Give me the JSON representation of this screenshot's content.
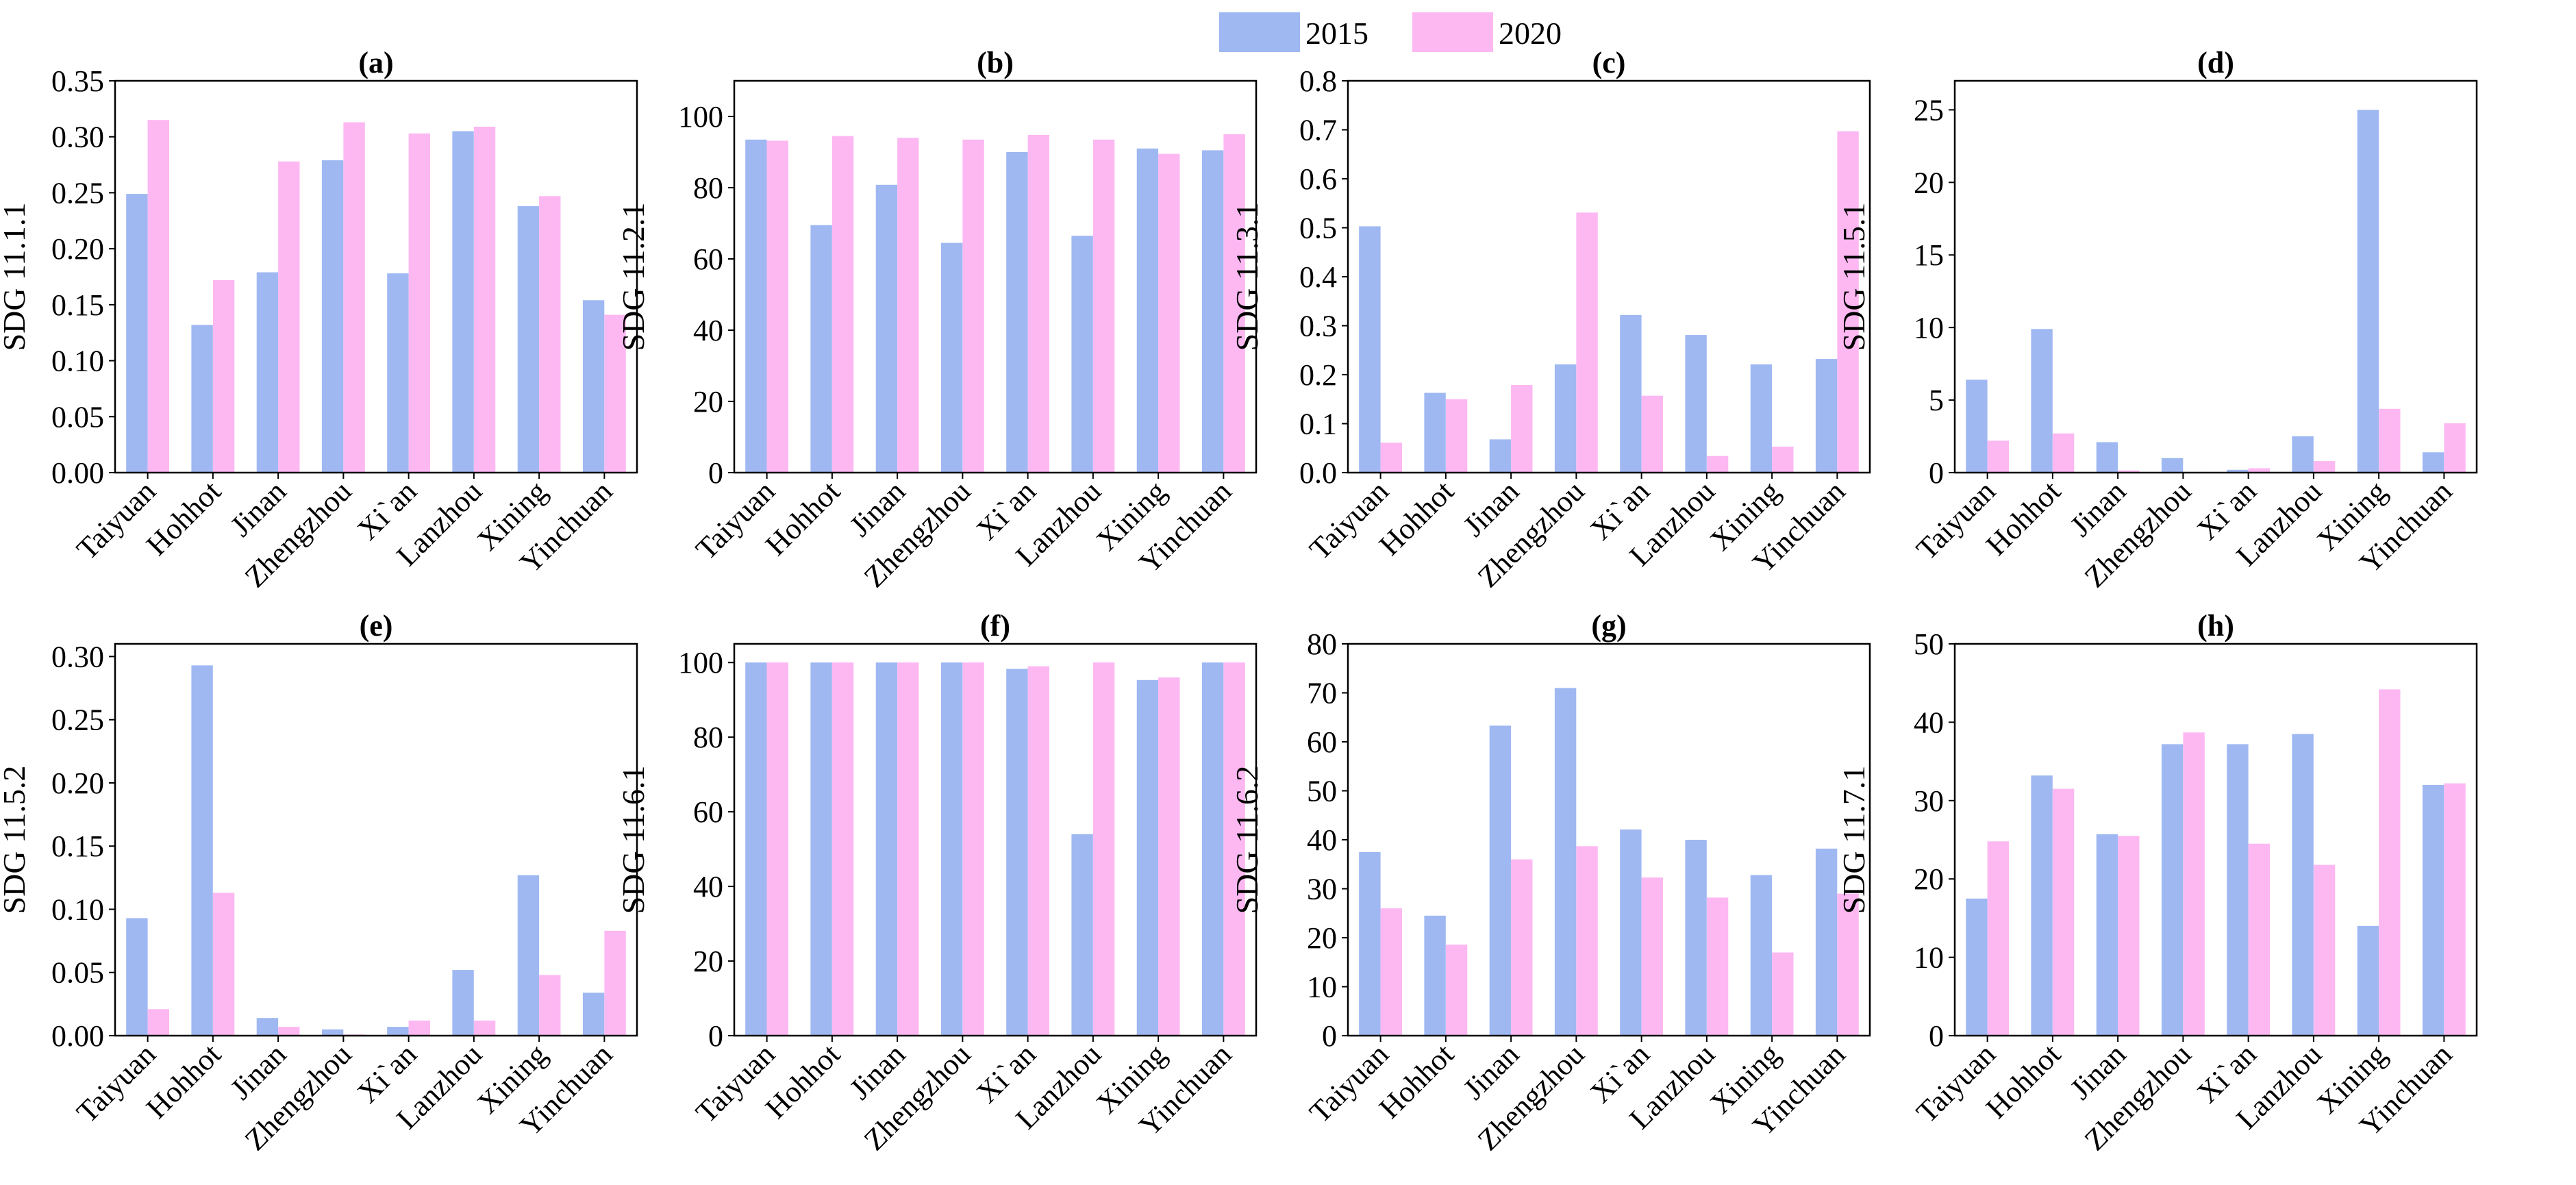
{
  "legend": [
    {
      "label": "2015",
      "color": "#9fb8f2"
    },
    {
      "label": "2020",
      "color": "#fdb8f2"
    }
  ],
  "chart_data": [
    {
      "type": "bar",
      "title": "(a)",
      "ylabel": "SDG 11.1.1",
      "ylim": [
        0,
        0.35
      ],
      "yticks": [
        "0.00",
        "0.05",
        "0.10",
        "0.15",
        "0.20",
        "0.25",
        "0.30",
        "0.35"
      ],
      "categories": [
        "Taiyuan",
        "Hohhot",
        "Jinan",
        "Zhengzhou",
        "Xi`an",
        "Lanzhou",
        "Xining",
        "Yinchuan"
      ],
      "series": [
        {
          "name": "2015",
          "values": [
            0.249,
            0.132,
            0.179,
            0.279,
            0.178,
            0.305,
            0.238,
            0.154
          ]
        },
        {
          "name": "2020",
          "values": [
            0.315,
            0.172,
            0.278,
            0.313,
            0.303,
            0.309,
            0.247,
            0.141
          ]
        }
      ]
    },
    {
      "type": "bar",
      "title": "(b)",
      "ylabel": "SDG 11.2.1",
      "ylim": [
        0,
        110
      ],
      "yticks": [
        "0",
        "20",
        "40",
        "60",
        "80",
        "100"
      ],
      "categories": [
        "Taiyuan",
        "Hohhot",
        "Jinan",
        "Zhengzhou",
        "Xi`an",
        "Lanzhou",
        "Xining",
        "Yinchuan"
      ],
      "series": [
        {
          "name": "2015",
          "values": [
            93.5,
            69.5,
            80.8,
            64.5,
            90.0,
            66.5,
            91.0,
            90.5
          ]
        },
        {
          "name": "2020",
          "values": [
            93.2,
            94.5,
            94.0,
            93.5,
            94.8,
            93.5,
            89.5,
            95.0
          ]
        }
      ]
    },
    {
      "type": "bar",
      "title": "(c)",
      "ylabel": "SDG 11.3.1",
      "ylim": [
        0,
        0.8
      ],
      "yticks": [
        "0.0",
        "0.1",
        "0.2",
        "0.3",
        "0.4",
        "0.5",
        "0.6",
        "0.7",
        "0.8"
      ],
      "categories": [
        "Taiyuan",
        "Hohhot",
        "Jinan",
        "Zhengzhou",
        "Xi`an",
        "Lanzhou",
        "Xining",
        "Yinchuan"
      ],
      "series": [
        {
          "name": "2015",
          "values": [
            0.503,
            0.163,
            0.068,
            0.221,
            0.322,
            0.281,
            0.221,
            0.232
          ]
        },
        {
          "name": "2020",
          "values": [
            0.061,
            0.15,
            0.179,
            0.531,
            0.157,
            0.034,
            0.053,
            0.697
          ]
        }
      ]
    },
    {
      "type": "bar",
      "title": "(d)",
      "ylabel": "SDG 11.5.1",
      "ylim": [
        0,
        27
      ],
      "yticks": [
        "0",
        "5",
        "10",
        "15",
        "20",
        "25"
      ],
      "categories": [
        "Taiyuan",
        "Hohhot",
        "Jinan",
        "Zhengzhou",
        "Xi`an",
        "Lanzhou",
        "Xining",
        "Yinchuan"
      ],
      "series": [
        {
          "name": "2015",
          "values": [
            6.4,
            9.9,
            2.1,
            1.0,
            0.2,
            2.5,
            25.0,
            1.4
          ]
        },
        {
          "name": "2020",
          "values": [
            2.2,
            2.7,
            0.15,
            0.05,
            0.3,
            0.8,
            4.4,
            3.4
          ]
        }
      ]
    },
    {
      "type": "bar",
      "title": "(e)",
      "ylabel": "SDG 11.5.2",
      "ylim": [
        0,
        0.31
      ],
      "yticks": [
        "0.00",
        "0.05",
        "0.10",
        "0.15",
        "0.20",
        "0.25",
        "0.30"
      ],
      "categories": [
        "Taiyuan",
        "Hohhot",
        "Jinan",
        "Zhengzhou",
        "Xi`an",
        "Lanzhou",
        "Xining",
        "Yinchuan"
      ],
      "series": [
        {
          "name": "2015",
          "values": [
            0.093,
            0.293,
            0.014,
            0.005,
            0.007,
            0.052,
            0.127,
            0.034
          ]
        },
        {
          "name": "2020",
          "values": [
            0.021,
            0.113,
            0.007,
            0.001,
            0.012,
            0.012,
            0.048,
            0.083
          ]
        }
      ]
    },
    {
      "type": "bar",
      "title": "(f)",
      "ylabel": "SDG 11.6.1",
      "ylim": [
        0,
        105
      ],
      "yticks": [
        "0",
        "20",
        "40",
        "60",
        "80",
        "100"
      ],
      "categories": [
        "Taiyuan",
        "Hohhot",
        "Jinan",
        "Zhengzhou",
        "Xi`an",
        "Lanzhou",
        "Xining",
        "Yinchuan"
      ],
      "series": [
        {
          "name": "2015",
          "values": [
            100,
            100,
            100,
            100,
            98.3,
            54.0,
            95.3,
            100
          ]
        },
        {
          "name": "2020",
          "values": [
            100,
            100,
            100,
            100,
            99.0,
            100,
            96.0,
            100
          ]
        }
      ]
    },
    {
      "type": "bar",
      "title": "(g)",
      "ylabel": "SDG 11.6.2",
      "ylim": [
        0,
        80
      ],
      "yticks": [
        "0",
        "10",
        "20",
        "30",
        "40",
        "50",
        "60",
        "70",
        "80"
      ],
      "categories": [
        "Taiyuan",
        "Hohhot",
        "Jinan",
        "Zhengzhou",
        "Xi`an",
        "Lanzhou",
        "Xining",
        "Yinchuan"
      ],
      "series": [
        {
          "name": "2015",
          "values": [
            37.5,
            24.5,
            63.3,
            71.0,
            42.1,
            40.0,
            32.8,
            38.2
          ]
        },
        {
          "name": "2020",
          "values": [
            26.0,
            18.6,
            36.0,
            38.7,
            32.3,
            28.2,
            17.0,
            29.0
          ]
        }
      ]
    },
    {
      "type": "bar",
      "title": "(h)",
      "ylabel": "SDG 11.7.1",
      "ylim": [
        0,
        50
      ],
      "yticks": [
        "0",
        "10",
        "20",
        "30",
        "40",
        "50"
      ],
      "categories": [
        "Taiyuan",
        "Hohhot",
        "Jinan",
        "Zhengzhou",
        "Xi`an",
        "Lanzhou",
        "Xining",
        "Yinchuan"
      ],
      "series": [
        {
          "name": "2015",
          "values": [
            17.5,
            33.2,
            25.7,
            37.2,
            37.2,
            38.5,
            14.0,
            32.0
          ]
        },
        {
          "name": "2020",
          "values": [
            24.8,
            31.5,
            25.5,
            38.7,
            24.5,
            21.8,
            44.2,
            32.2
          ]
        }
      ]
    }
  ]
}
